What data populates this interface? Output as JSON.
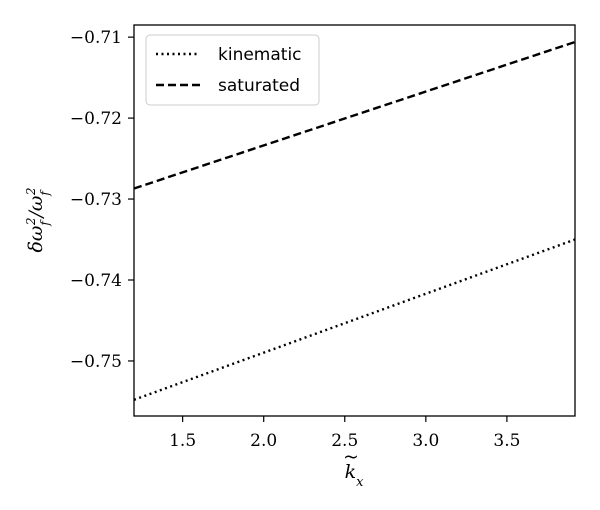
{
  "chart_data": {
    "type": "line",
    "title": "",
    "xlabel": "k̃ₓ",
    "ylabel": "δω_f²/ω_f²",
    "xlim": [
      1.2,
      3.92
    ],
    "ylim": [
      -0.7568,
      -0.7085
    ],
    "xticks": [
      1.5,
      2.0,
      2.5,
      3.0,
      3.5
    ],
    "xtick_labels": [
      "1.5",
      "2.0",
      "2.5",
      "3.0",
      "3.5"
    ],
    "yticks": [
      -0.71,
      -0.72,
      -0.73,
      -0.74,
      -0.75
    ],
    "ytick_labels": [
      "−0.71",
      "−0.72",
      "−0.73",
      "−0.74",
      "−0.75"
    ],
    "grid": false,
    "legend_position": "top-left",
    "series": [
      {
        "name": "kinematic",
        "style": "dotted",
        "color": "#000000",
        "x": [
          1.2,
          3.92
        ],
        "y": [
          -0.7548,
          -0.735
        ]
      },
      {
        "name": "saturated",
        "style": "dashed",
        "color": "#000000",
        "x": [
          1.2,
          3.92
        ],
        "y": [
          -0.7287,
          -0.7106
        ]
      }
    ]
  }
}
